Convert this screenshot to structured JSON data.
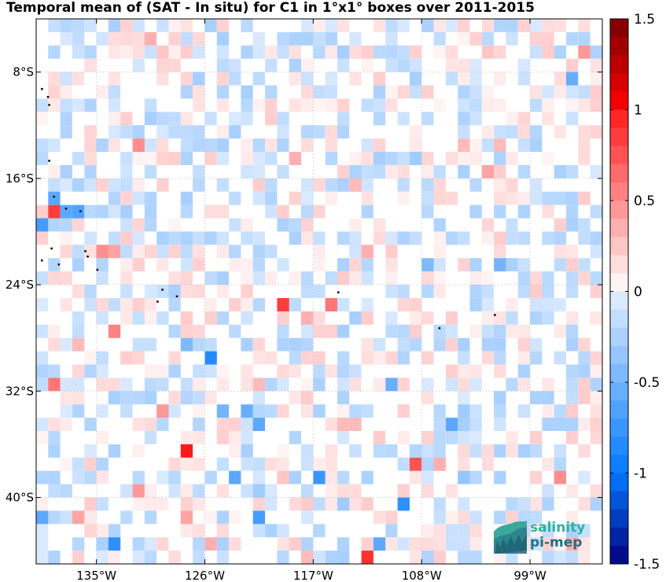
{
  "chart_data": {
    "type": "heatmap",
    "title": "Temporal mean of (SAT - In situ) for C1 in 1°x1° boxes over 2011-2015",
    "x_tick_labels": [
      "135°W",
      "126°W",
      "117°W",
      "108°W",
      "99°W"
    ],
    "y_tick_labels": [
      "8°S",
      "16°S",
      "24°S",
      "32°S",
      "40°S"
    ],
    "x_ticks": [
      -135,
      -126,
      -117,
      -108,
      -99
    ],
    "y_ticks": [
      -8,
      -16,
      -24,
      -32,
      -40
    ],
    "xlim": [
      -140,
      -93
    ],
    "ylim": [
      -45,
      -4
    ],
    "grid": true,
    "colorbar": {
      "ticks": [
        1.5,
        1,
        0.5,
        0,
        -0.5,
        -1,
        -1.5
      ],
      "tick_labels": [
        "1.5",
        "1",
        "0.5",
        "0",
        "-0.5",
        "-1",
        "-1.5"
      ],
      "range": [
        -1.5,
        1.5
      ],
      "levels": 30,
      "position": "right"
    },
    "cells": [
      {
        "lon": -133.5,
        "lat": -5.5,
        "v": 0.15
      },
      {
        "lon": -131.5,
        "lat": -5.5,
        "v": 0.15
      },
      {
        "lon": -130.5,
        "lat": -5.5,
        "v": 0.35
      },
      {
        "lon": -128.5,
        "lat": -5.5,
        "v": 0.2
      },
      {
        "lon": -129.5,
        "lat": -6.5,
        "v": 0.25
      },
      {
        "lon": -120.5,
        "lat": -6.5,
        "v": 0.1
      },
      {
        "lon": -115.5,
        "lat": -6.5,
        "v": 0.1
      },
      {
        "lon": -113.5,
        "lat": -6.5,
        "v": 0.15
      },
      {
        "lon": -110.5,
        "lat": -5.5,
        "v": -0.1
      },
      {
        "lon": -105.5,
        "lat": -6.5,
        "v": 0.15
      },
      {
        "lon": -103.5,
        "lat": -5.5,
        "v": 0.2
      },
      {
        "lon": -102.5,
        "lat": -6.5,
        "v": 0.25
      },
      {
        "lon": -98.5,
        "lat": -5.5,
        "v": 0.2
      },
      {
        "lon": -94.5,
        "lat": -6.5,
        "v": 0.45
      },
      {
        "lon": -95.5,
        "lat": -8.5,
        "v": -0.55
      },
      {
        "lon": -131.5,
        "lat": -13.5,
        "v": 0.5
      },
      {
        "lon": -129.5,
        "lat": -13.5,
        "v": 0.15
      },
      {
        "lon": -122.5,
        "lat": -11.5,
        "v": -0.1
      },
      {
        "lon": -118.5,
        "lat": -14.5,
        "v": 0.35
      },
      {
        "lon": -115.5,
        "lat": -13.5,
        "v": 0.15
      },
      {
        "lon": -104.5,
        "lat": -13.5,
        "v": 0.3
      },
      {
        "lon": -102.5,
        "lat": -15.5,
        "v": 0.4
      },
      {
        "lon": -108.5,
        "lat": -14.5,
        "v": -0.3
      },
      {
        "lon": -101.5,
        "lat": -13.5,
        "v": 0.3
      },
      {
        "lon": -138.5,
        "lat": -18.5,
        "v": 0.85
      },
      {
        "lon": -138.5,
        "lat": -17.5,
        "v": -0.6
      },
      {
        "lon": -139.5,
        "lat": -19.5,
        "v": -0.7
      },
      {
        "lon": -137.5,
        "lat": -18.5,
        "v": -0.6
      },
      {
        "lon": -136.5,
        "lat": -18.5,
        "v": -0.65
      },
      {
        "lon": -135.5,
        "lat": -18.5,
        "v": -0.2
      },
      {
        "lon": -134.5,
        "lat": -21.5,
        "v": 0.5
      },
      {
        "lon": -133.5,
        "lat": -21.5,
        "v": 0.4
      },
      {
        "lon": -127.5,
        "lat": -18.5,
        "v": -0.2
      },
      {
        "lon": -125.5,
        "lat": -18.5,
        "v": 0.15
      },
      {
        "lon": -124.5,
        "lat": -18.5,
        "v": 0.15
      },
      {
        "lon": -113.5,
        "lat": -16.5,
        "v": 0.3
      },
      {
        "lon": -99.5,
        "lat": -15.5,
        "v": -0.2
      },
      {
        "lon": -97.5,
        "lat": -17.5,
        "v": -0.2
      },
      {
        "lon": -96.5,
        "lat": -17.5,
        "v": -0.2
      },
      {
        "lon": -112.5,
        "lat": -21.5,
        "v": 0.35
      },
      {
        "lon": -107.5,
        "lat": -22.5,
        "v": -0.45
      },
      {
        "lon": -101.5,
        "lat": -22.5,
        "v": -0.5
      },
      {
        "lon": -115.5,
        "lat": -25.5,
        "v": 0.6
      },
      {
        "lon": -119.5,
        "lat": -25.5,
        "v": 0.85
      },
      {
        "lon": -117.5,
        "lat": -26.5,
        "v": 0.35
      },
      {
        "lon": -133.5,
        "lat": -27.5,
        "v": 0.55
      },
      {
        "lon": -136.5,
        "lat": -28.5,
        "v": 0.3
      },
      {
        "lon": -127.5,
        "lat": -28.5,
        "v": -0.45
      },
      {
        "lon": -125.5,
        "lat": -29.5,
        "v": -0.85
      },
      {
        "lon": -121.5,
        "lat": -31.5,
        "v": 0.3
      },
      {
        "lon": -138.5,
        "lat": -31.5,
        "v": 0.6
      },
      {
        "lon": -122.5,
        "lat": -33.5,
        "v": -0.55
      },
      {
        "lon": -124.5,
        "lat": -33.5,
        "v": -0.5
      },
      {
        "lon": -129.5,
        "lat": -33.5,
        "v": 0.45
      },
      {
        "lon": -121.5,
        "lat": -34.5,
        "v": -0.6
      },
      {
        "lon": -114.5,
        "lat": -34.5,
        "v": 0.3
      },
      {
        "lon": -113.5,
        "lat": -34.5,
        "v": 0.3
      },
      {
        "lon": -110.5,
        "lat": -31.5,
        "v": -0.55
      },
      {
        "lon": -105.5,
        "lat": -34.5,
        "v": -0.6
      },
      {
        "lon": -104.5,
        "lat": -33.5,
        "v": -0.3
      },
      {
        "lon": -127.5,
        "lat": -36.5,
        "v": 1.0
      },
      {
        "lon": -108.5,
        "lat": -37.5,
        "v": 0.75
      },
      {
        "lon": -106.5,
        "lat": -37.5,
        "v": 0.35
      },
      {
        "lon": -104.5,
        "lat": -38.5,
        "v": -0.35
      },
      {
        "lon": -119.5,
        "lat": -38.5,
        "v": 0.25
      },
      {
        "lon": -131.5,
        "lat": -39.5,
        "v": 0.45
      },
      {
        "lon": -123.5,
        "lat": -38.5,
        "v": -0.6
      },
      {
        "lon": -121.5,
        "lat": -39.5,
        "v": -0.3
      },
      {
        "lon": -116.5,
        "lat": -38.5,
        "v": -0.75
      },
      {
        "lon": -114.5,
        "lat": -40.5,
        "v": -0.3
      },
      {
        "lon": -109.5,
        "lat": -40.5,
        "v": -0.8
      },
      {
        "lon": -96.5,
        "lat": -38.5,
        "v": 0.5
      },
      {
        "lon": -139.5,
        "lat": -41.5,
        "v": -0.6
      },
      {
        "lon": -136.5,
        "lat": -41.5,
        "v": 0.4
      },
      {
        "lon": -127.5,
        "lat": -41.5,
        "v": 0.4
      },
      {
        "lon": -121.5,
        "lat": -41.5,
        "v": -0.7
      },
      {
        "lon": -133.5,
        "lat": -43.5,
        "v": -0.8
      },
      {
        "lon": -125.5,
        "lat": -43.5,
        "v": 0.35
      },
      {
        "lon": -111.5,
        "lat": -43.5,
        "v": -0.6
      },
      {
        "lon": -112.5,
        "lat": -44.5,
        "v": 0.9
      },
      {
        "lon": -117.5,
        "lat": -44.5,
        "v": 0.3
      },
      {
        "lon": -95.5,
        "lat": -43.5,
        "v": 0.35
      }
    ]
  },
  "logo": {
    "line1": "salinity",
    "line2": "pi-mep"
  },
  "colors": {
    "positive": "#ff0000",
    "negative": "#0000ff",
    "zero": "#ffffff",
    "land": "#000000"
  }
}
